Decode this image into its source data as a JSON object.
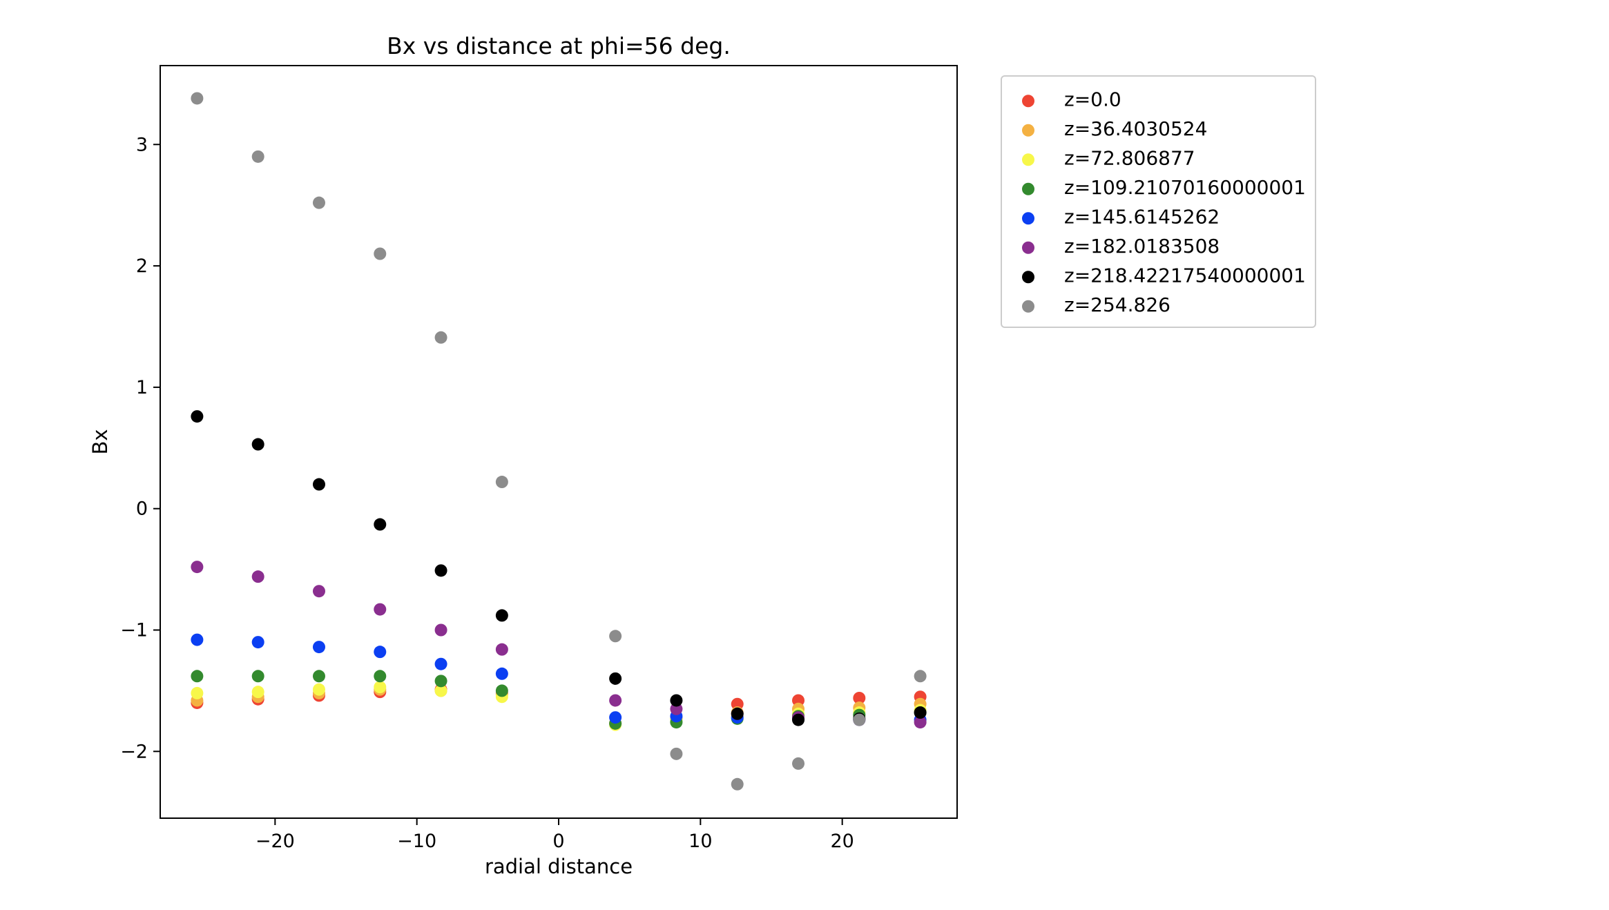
{
  "chart_data": {
    "type": "scatter",
    "title": "Bx vs distance at phi=56 deg.",
    "xlabel": "radial distance",
    "ylabel": "Bx",
    "xlim": [
      -28.1,
      28.1
    ],
    "ylim": [
      -2.55,
      3.65
    ],
    "xticks": [
      -20,
      -10,
      0,
      10,
      20
    ],
    "xtick_labels": [
      "−20",
      "−10",
      "0",
      "10",
      "20"
    ],
    "yticks": [
      -2,
      -1,
      0,
      1,
      2,
      3
    ],
    "ytick_labels": [
      "−2",
      "−1",
      "0",
      "1",
      "2",
      "3"
    ],
    "grid": false,
    "legend_position": "outside-right",
    "x": [
      -25.5,
      -21.2,
      -16.9,
      -12.6,
      -8.3,
      -4.0,
      4.0,
      8.3,
      12.6,
      16.9,
      21.2,
      25.5
    ],
    "series": [
      {
        "name": "z=0.0",
        "color": "#ee4433",
        "values": [
          -1.6,
          -1.57,
          -1.54,
          -1.51,
          -1.49,
          -1.52,
          -1.77,
          -1.73,
          -1.61,
          -1.58,
          -1.56,
          -1.55
        ]
      },
      {
        "name": "z=36.4030524",
        "color": "#f4b142",
        "values": [
          -1.58,
          -1.55,
          -1.52,
          -1.49,
          -1.5,
          -1.53,
          -1.77,
          -1.73,
          -1.68,
          -1.65,
          -1.64,
          -1.61
        ]
      },
      {
        "name": "z=72.806877",
        "color": "#f7f74a",
        "values": [
          -1.52,
          -1.51,
          -1.49,
          -1.47,
          -1.5,
          -1.55,
          -1.78,
          -1.74,
          -1.71,
          -1.69,
          -1.68,
          -1.66
        ]
      },
      {
        "name": "z=109.21070160000001",
        "color": "#338a2e",
        "values": [
          -1.38,
          -1.38,
          -1.38,
          -1.38,
          -1.42,
          -1.5,
          -1.77,
          -1.76,
          -1.73,
          -1.71,
          -1.7,
          -1.68
        ]
      },
      {
        "name": "z=145.6145262",
        "color": "#0b3ff2",
        "values": [
          -1.08,
          -1.1,
          -1.14,
          -1.18,
          -1.28,
          -1.36,
          -1.72,
          -1.71,
          -1.72,
          -1.73,
          -1.74,
          -1.74
        ]
      },
      {
        "name": "z=182.0183508",
        "color": "#8a2e8f",
        "values": [
          -0.48,
          -0.56,
          -0.68,
          -0.83,
          -1.0,
          -1.16,
          -1.58,
          -1.65,
          -1.69,
          -1.72,
          -1.74,
          -1.76
        ]
      },
      {
        "name": "z=218.42217540000001",
        "color": "#000000",
        "values": [
          0.76,
          0.53,
          0.2,
          -0.13,
          -0.51,
          -0.88,
          -1.4,
          -1.58,
          -1.69,
          -1.74,
          -1.73,
          -1.68
        ]
      },
      {
        "name": "z=254.826",
        "color": "#8c8c8c",
        "values": [
          3.38,
          2.9,
          2.52,
          2.1,
          1.41,
          0.22,
          -1.05,
          -2.02,
          -2.27,
          -2.1,
          -1.74,
          -1.38
        ]
      }
    ]
  }
}
